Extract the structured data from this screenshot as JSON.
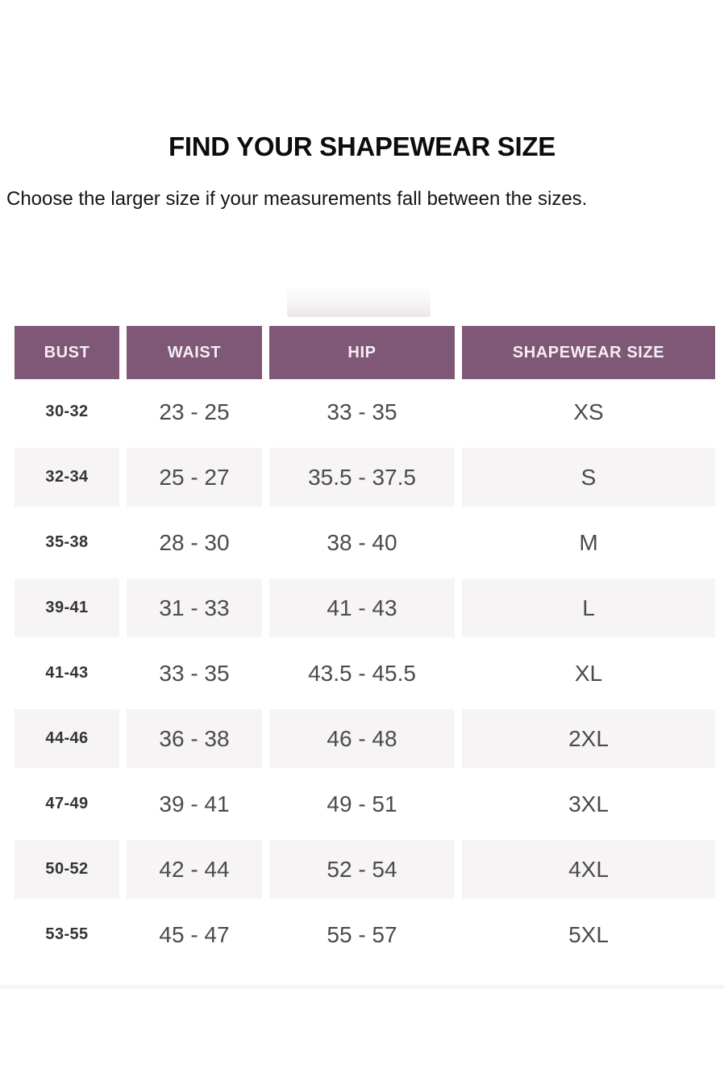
{
  "page": {
    "title": "FIND YOUR SHAPEWEAR SIZE",
    "subtitle": "Choose the larger size if your measurements fall between the sizes."
  },
  "table": {
    "columns": [
      {
        "key": "bust",
        "label": "BUST"
      },
      {
        "key": "waist",
        "label": "WAIST"
      },
      {
        "key": "hip",
        "label": "HIP"
      },
      {
        "key": "size",
        "label": "SHAPEWEAR SIZE"
      }
    ],
    "rows": [
      {
        "bust": "30-32",
        "waist": "23 - 25",
        "hip": "33 - 35",
        "size": "XS"
      },
      {
        "bust": "32-34",
        "waist": "25 - 27",
        "hip": "35.5 - 37.5",
        "size": "S"
      },
      {
        "bust": "35-38",
        "waist": "28 - 30",
        "hip": "38 - 40",
        "size": "M"
      },
      {
        "bust": "39-41",
        "waist": "31 - 33",
        "hip": "41 - 43",
        "size": "L"
      },
      {
        "bust": "41-43",
        "waist": "33 - 35",
        "hip": "43.5 - 45.5",
        "size": "XL"
      },
      {
        "bust": "44-46",
        "waist": "36 - 38",
        "hip": "46 - 48",
        "size": "2XL"
      },
      {
        "bust": "47-49",
        "waist": "39 - 41",
        "hip": "49 - 51",
        "size": "3XL"
      },
      {
        "bust": "50-52",
        "waist": "42 - 44",
        "hip": "52 - 54",
        "size": "4XL"
      },
      {
        "bust": "53-55",
        "waist": "45 - 47",
        "hip": "55 - 57",
        "size": "5XL"
      }
    ],
    "colors": {
      "header_bg": "#7e5876",
      "header_text": "#f6edf4",
      "alt_row_bg": "#f7f4f6",
      "body_text": "#4b4a4d",
      "bust_text": "#343336"
    }
  }
}
